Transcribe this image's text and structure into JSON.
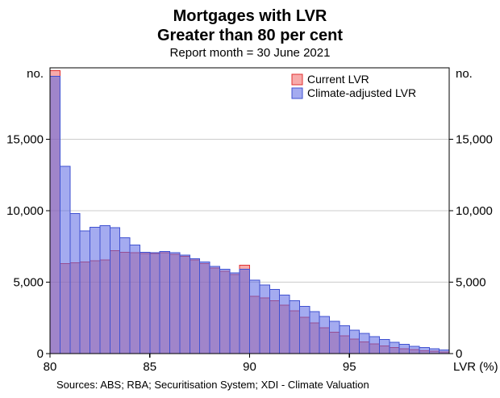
{
  "chart_data": {
    "type": "bar",
    "title_line1": "Mortgages with LVR",
    "title_line2": "Greater than 80 per cent",
    "subtitle": "Report month = 30 June 2021",
    "xlabel": "LVR (%)",
    "y_unit_label_left": "no.",
    "y_unit_label_right": "no.",
    "xlim": [
      80,
      100
    ],
    "ylim": [
      0,
      20000
    ],
    "grid": true,
    "legend_position": "top-right-inside",
    "bins": {
      "start": 80,
      "width": 0.5
    },
    "x_ticks": [
      {
        "value": 80,
        "label": "80"
      },
      {
        "value": 85,
        "label": "85"
      },
      {
        "value": 90,
        "label": "90"
      },
      {
        "value": 95,
        "label": "95"
      }
    ],
    "y_ticks": [
      {
        "value": 0,
        "label": "0"
      },
      {
        "value": 5000,
        "label": "5,000"
      },
      {
        "value": 10000,
        "label": "10,000"
      },
      {
        "value": 15000,
        "label": "15,000"
      }
    ],
    "series": [
      {
        "name": "Current LVR",
        "stroke": "#e03131",
        "fill": "rgba(240,85,85,0.5)",
        "values": [
          19800,
          6300,
          6350,
          6400,
          6500,
          6550,
          7200,
          7100,
          7050,
          7000,
          7000,
          7050,
          6950,
          6800,
          6550,
          6300,
          6000,
          5750,
          5550,
          6200,
          4000,
          3900,
          3700,
          3400,
          3000,
          2550,
          2150,
          1800,
          1500,
          1250,
          1020,
          830,
          670,
          540,
          430,
          340,
          270,
          210,
          160,
          120
        ]
      },
      {
        "name": "Climate-adjusted LVR",
        "stroke": "#3f51d1",
        "fill": "rgba(90,102,228,0.55)",
        "values": [
          19400,
          13100,
          9800,
          8600,
          8850,
          8950,
          8800,
          8100,
          7600,
          7100,
          7050,
          7150,
          7050,
          6900,
          6650,
          6400,
          6100,
          5900,
          5650,
          5900,
          5150,
          4800,
          4500,
          4100,
          3700,
          3300,
          2950,
          2600,
          2250,
          1950,
          1650,
          1400,
          1180,
          980,
          800,
          650,
          520,
          420,
          330,
          260
        ]
      }
    ],
    "draw_order": [
      0,
      1
    ],
    "colors": {
      "grid": "#cccccc",
      "frame": "#000000",
      "text": "#000000",
      "sources_text": "#00008b"
    },
    "sources": "Sources:  ABS; RBA; Securitisation System; XDI - Climate Valuation"
  }
}
